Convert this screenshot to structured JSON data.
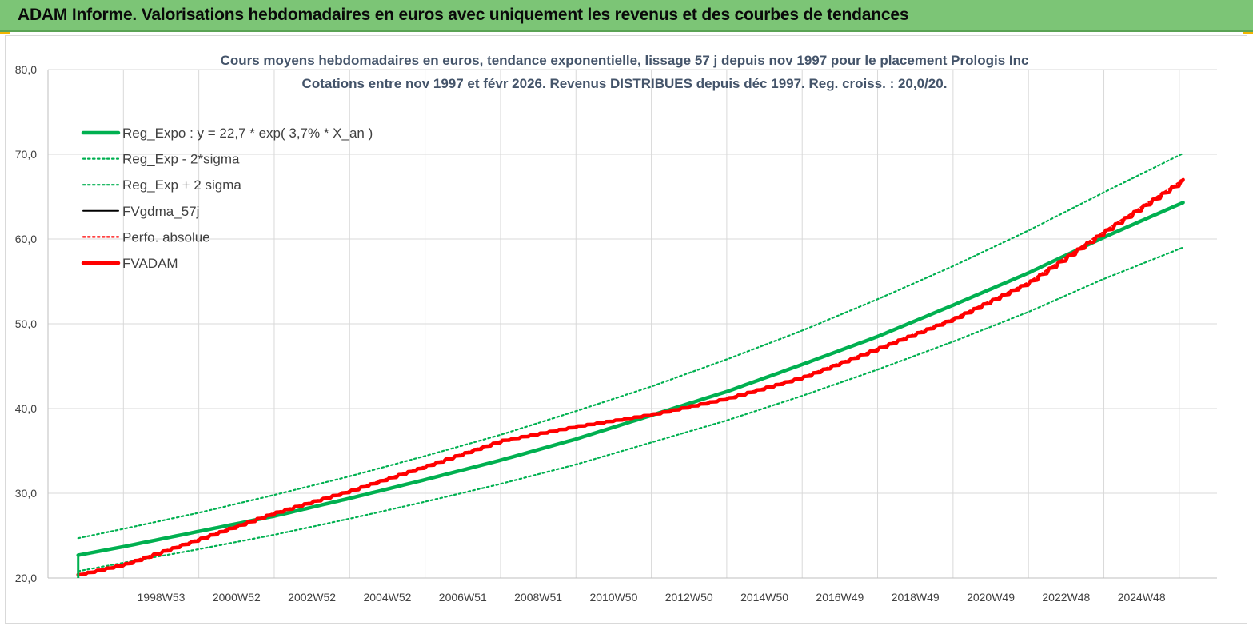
{
  "header": {
    "title": "ADAM Informe. Valorisations hebdomadaires en euros avec uniquement les revenus et des courbes de tendances"
  },
  "chart_data": {
    "type": "line",
    "title": "Cours moyens hebdomadaires en euros, tendance exponentielle, lissage 57 j depuis nov 1997 pour le placement Prologis Inc",
    "subtitle": "Cotations entre nov 1997 et févr 2026. Revenus DISTRIBUES depuis déc 1997. Reg. croiss. : 20,0/20.",
    "xlabel": "",
    "ylabel": "",
    "ylim": [
      20,
      80
    ],
    "xlim": [
      1996.1,
      2027.1
    ],
    "yticks": [
      "20,0",
      "30,0",
      "40,0",
      "50,0",
      "60,0",
      "70,0",
      "80,0"
    ],
    "xticks": [
      {
        "label": "1998W53",
        "x": 1998.1
      },
      {
        "label": "2000W52",
        "x": 2000.1
      },
      {
        "label": "2002W52",
        "x": 2002.1
      },
      {
        "label": "2004W52",
        "x": 2004.1
      },
      {
        "label": "2006W51",
        "x": 2006.1
      },
      {
        "label": "2008W51",
        "x": 2008.1
      },
      {
        "label": "2010W50",
        "x": 2010.1
      },
      {
        "label": "2012W50",
        "x": 2012.1
      },
      {
        "label": "2014W50",
        "x": 2014.1
      },
      {
        "label": "2016W49",
        "x": 2016.1
      },
      {
        "label": "2018W49",
        "x": 2018.1
      },
      {
        "label": "2020W49",
        "x": 2020.1
      },
      {
        "label": "2022W48",
        "x": 2022.1
      },
      {
        "label": "2024W48",
        "x": 2024.1
      }
    ],
    "grid": true,
    "legend_position": "top-left",
    "series": [
      {
        "name": "Reg_Expo : y = 22,7 * exp( 3,7% *  X_an )",
        "style": "solid-thick",
        "color": "#00b050",
        "x": [
          1996.9,
          1998.1,
          2000.1,
          2002.1,
          2004.1,
          2006.1,
          2008.1,
          2010.1,
          2012.1,
          2014.1,
          2016.1,
          2018.1,
          2020.1,
          2022.1,
          2024.1,
          2026.2
        ],
        "y": [
          22.7,
          23.7,
          25.5,
          27.3,
          29.4,
          31.6,
          33.9,
          36.4,
          39.2,
          42.0,
          45.2,
          48.5,
          52.2,
          56.0,
          60.2,
          64.3
        ]
      },
      {
        "name": "Reg_Exp - 2*sigma",
        "style": "dotted",
        "color": "#00b050",
        "x": [
          1996.9,
          1998.1,
          2000.1,
          2002.1,
          2004.1,
          2006.1,
          2008.1,
          2010.1,
          2012.1,
          2014.1,
          2016.1,
          2018.1,
          2020.1,
          2022.1,
          2024.1,
          2026.2
        ],
        "y": [
          20.8,
          21.8,
          23.4,
          25.1,
          27.0,
          29.0,
          31.1,
          33.4,
          36.0,
          38.6,
          41.5,
          44.6,
          47.9,
          51.4,
          55.3,
          59.0
        ]
      },
      {
        "name": "Reg_Exp + 2 sigma",
        "style": "dotted",
        "color": "#00b050",
        "x": [
          1996.9,
          1998.1,
          2000.1,
          2002.1,
          2004.1,
          2006.1,
          2008.1,
          2010.1,
          2012.1,
          2014.1,
          2016.1,
          2018.1,
          2020.1,
          2022.1,
          2024.1,
          2026.2
        ],
        "y": [
          24.7,
          25.8,
          27.7,
          29.8,
          32.0,
          34.4,
          36.9,
          39.7,
          42.6,
          45.8,
          49.2,
          52.9,
          56.8,
          61.0,
          65.5,
          70.1
        ]
      },
      {
        "name": "FVgdma_57j",
        "style": "solid",
        "color": "#000000",
        "x": [
          1996.9,
          1998.1,
          2000.1,
          2002.1,
          2004.1,
          2006.1,
          2008.1,
          2010.1,
          2012.1,
          2014.1,
          2016.1,
          2018.1,
          2020.1,
          2022.1,
          2024.1,
          2026.2
        ],
        "y": [
          20.4,
          21.6,
          24.6,
          27.7,
          30.3,
          33.2,
          36.2,
          37.9,
          39.3,
          41.2,
          43.7,
          47.1,
          50.6,
          54.9,
          60.9,
          67.0
        ]
      },
      {
        "name": "Perfo. absolue",
        "style": "dotted",
        "color": "#ff0000",
        "x": [
          1996.9,
          1998.1,
          2000.1,
          2002.1,
          2004.1,
          2006.1,
          2008.1,
          2010.1,
          2012.1,
          2014.1,
          2016.1,
          2018.1,
          2020.1,
          2022.1,
          2024.1,
          2026.2
        ],
        "y": [
          20.4,
          21.6,
          24.6,
          27.7,
          30.3,
          33.2,
          36.2,
          37.9,
          39.3,
          41.2,
          43.7,
          47.1,
          50.6,
          54.9,
          60.9,
          67.0
        ]
      },
      {
        "name": "FVADAM",
        "style": "solid-thick",
        "color": "#ff0000",
        "x": [
          1996.9,
          1998.1,
          2000.1,
          2002.1,
          2004.1,
          2006.1,
          2008.1,
          2010.1,
          2012.1,
          2014.1,
          2016.1,
          2018.1,
          2020.1,
          2022.1,
          2024.1,
          2026.2
        ],
        "y": [
          20.4,
          21.6,
          24.6,
          27.7,
          30.3,
          33.2,
          36.2,
          37.9,
          39.3,
          41.2,
          43.7,
          47.1,
          50.6,
          54.9,
          60.9,
          67.0
        ]
      }
    ]
  }
}
